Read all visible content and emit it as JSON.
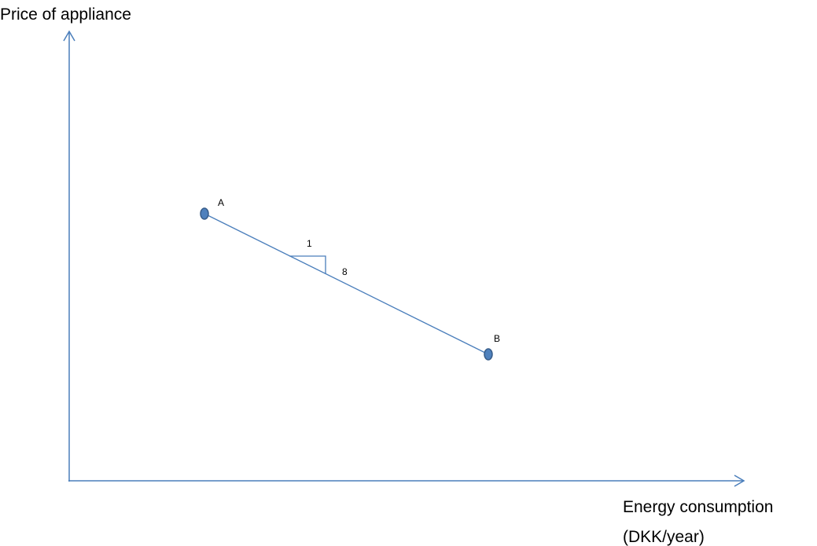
{
  "y_axis": {
    "label": "Price of appliance"
  },
  "x_axis": {
    "label_lines": [
      "Energy consumption",
      "(DKK/year)"
    ]
  },
  "points": [
    {
      "label": "A"
    },
    {
      "label": "B"
    }
  ],
  "slope": {
    "run": "1",
    "rise": "8"
  }
}
